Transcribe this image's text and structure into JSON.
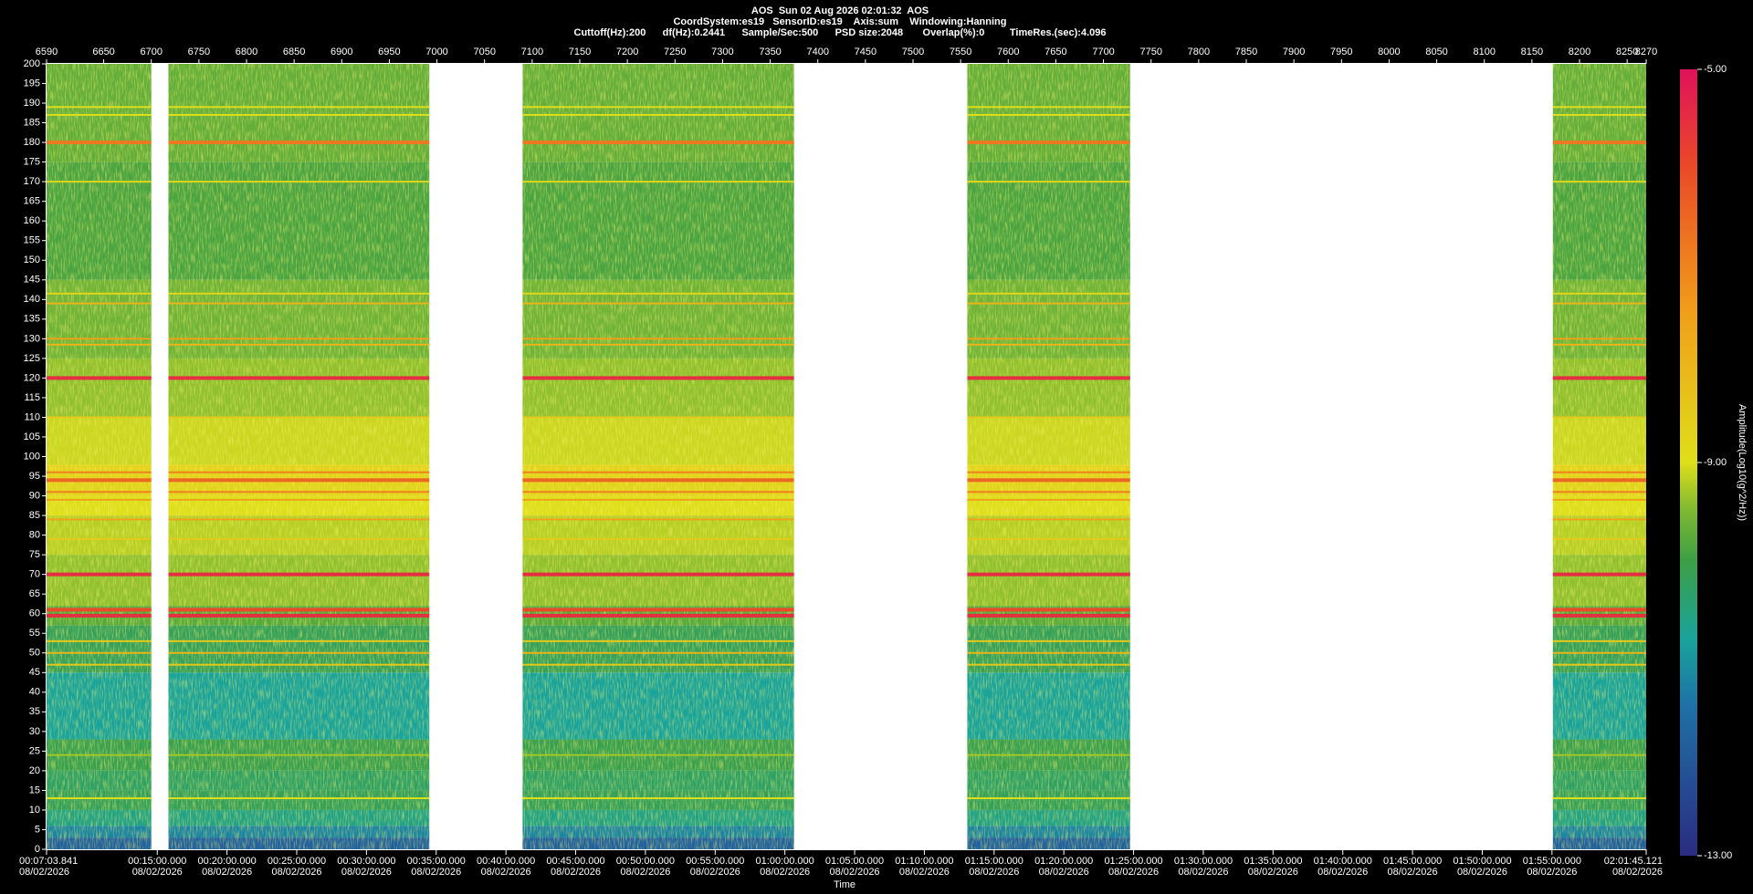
{
  "chart_data": {
    "type": "spectrogram",
    "title": "AOS  Sun 02 Aug 2026 02:01:32  AOS",
    "subtitle": [
      "CoordSystem:es19   SensorID:es19    Axis:sum    Windowing:Hanning",
      "Cuttoff(Hz):200      df(Hz):0.2441      Sample/Sec:500      PSD size:2048       Overlap(%):0         TimeRes.(sec):4.096"
    ],
    "xlabel": "Time",
    "colorbar_label": "Amplitude(Log10(g^2/Hz))",
    "xlim": [
      6590,
      8270
    ],
    "xticks": [
      6590,
      6650,
      6700,
      6750,
      6800,
      6850,
      6900,
      6950,
      7000,
      7050,
      7100,
      7150,
      7200,
      7250,
      7300,
      7350,
      7400,
      7450,
      7500,
      7550,
      7600,
      7650,
      7700,
      7750,
      7800,
      7850,
      7900,
      7950,
      8000,
      8050,
      8100,
      8150,
      8200,
      8250,
      8270
    ],
    "x2ticks": [
      {
        "value": 6590,
        "label": "00:07:03.841"
      },
      {
        "value": 6706.25,
        "label": "00:15:00.000"
      },
      {
        "value": 6779.49,
        "label": "00:20:00.000"
      },
      {
        "value": 6852.73,
        "label": "00:25:00.000"
      },
      {
        "value": 6925.98,
        "label": "00:30:00.000"
      },
      {
        "value": 6999.22,
        "label": "00:35:00.000"
      },
      {
        "value": 7072.46,
        "label": "00:40:00.000"
      },
      {
        "value": 7145.7,
        "label": "00:45:00.000"
      },
      {
        "value": 7218.95,
        "label": "00:50:00.000"
      },
      {
        "value": 7292.19,
        "label": "00:55:00.000"
      },
      {
        "value": 7365.43,
        "label": "01:00:00.000"
      },
      {
        "value": 7438.67,
        "label": "01:05:00.000"
      },
      {
        "value": 7511.91,
        "label": "01:10:00.000"
      },
      {
        "value": 7585.16,
        "label": "01:15:00.000"
      },
      {
        "value": 7658.4,
        "label": "01:20:00.000"
      },
      {
        "value": 7731.64,
        "label": "01:25:00.000"
      },
      {
        "value": 7804.88,
        "label": "01:30:00.000"
      },
      {
        "value": 7878.12,
        "label": "01:35:00.000"
      },
      {
        "value": 7951.37,
        "label": "01:40:00.000"
      },
      {
        "value": 8024.61,
        "label": "01:45:00.000"
      },
      {
        "value": 8097.85,
        "label": "01:50:00.000"
      },
      {
        "value": 8171.09,
        "label": "01:55:00.000"
      },
      {
        "value": 8270,
        "label": "02:01:45.121"
      }
    ],
    "x2tick_date": "08/02/2026",
    "ylim": [
      0,
      200
    ],
    "yticks": [
      0,
      5,
      10,
      15,
      20,
      25,
      30,
      35,
      40,
      45,
      50,
      55,
      60,
      65,
      70,
      75,
      80,
      85,
      90,
      95,
      100,
      105,
      110,
      115,
      120,
      125,
      130,
      135,
      140,
      145,
      150,
      155,
      160,
      165,
      170,
      175,
      180,
      185,
      190,
      195,
      200
    ],
    "clim": [
      -13,
      -5
    ],
    "cticks": [
      {
        "value": -5,
        "label": "-5.00"
      },
      {
        "value": -9,
        "label": "-9.00"
      },
      {
        "value": -13,
        "label": "-13.00"
      }
    ],
    "colorscale": [
      [
        -13,
        "#2a2c80"
      ],
      [
        -11.5,
        "#1f6fa6"
      ],
      [
        -10.8,
        "#19a39b"
      ],
      [
        -10,
        "#3d9f45"
      ],
      [
        -9.5,
        "#7cb833"
      ],
      [
        -9,
        "#dede1a"
      ],
      [
        -7.5,
        "#f0a019"
      ],
      [
        -6,
        "#ea4a28"
      ],
      [
        -5,
        "#e0115a"
      ]
    ],
    "segments": [
      [
        6590,
        6700
      ],
      [
        6718,
        6992
      ],
      [
        7090,
        7375
      ],
      [
        7557,
        7728
      ],
      [
        8172,
        8270
      ]
    ],
    "bands": {
      "edges": [
        0,
        3,
        6,
        10,
        15,
        20,
        28,
        45,
        57,
        62,
        75,
        85,
        90,
        98,
        110,
        125,
        145,
        175,
        200
      ],
      "amplitude": [
        -11.8,
        -11.2,
        -10.6,
        -10.2,
        -10.3,
        -10.1,
        -10.8,
        -10.2,
        -9.8,
        -9.4,
        -9.2,
        -9.0,
        -8.7,
        -9.1,
        -9.4,
        -9.6,
        -9.9,
        -9.7
      ]
    },
    "lines": {
      "freq": [
        189,
        187,
        180,
        170,
        141.5,
        139,
        130,
        128.5,
        120,
        110,
        96,
        94,
        91,
        89,
        84,
        79,
        70,
        61,
        59.5,
        53,
        50,
        47,
        24,
        13
      ],
      "amplitude": [
        -9,
        -9,
        -6.8,
        -8.8,
        -8.8,
        -8,
        -7.5,
        -8,
        -5.5,
        -8.5,
        -7,
        -6.5,
        -7,
        -7.5,
        -7.5,
        -8.5,
        -5.5,
        -6,
        -5.5,
        -8.5,
        -8,
        -8.5,
        -9.3,
        -9
      ]
    }
  }
}
